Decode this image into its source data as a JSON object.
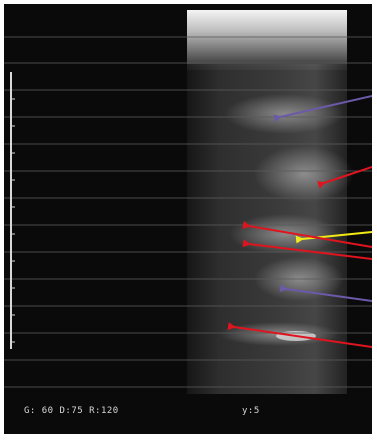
{
  "status_bar": {
    "settings": "G: 60 D:75 R:120",
    "index": "y:5"
  },
  "colors": {
    "background": "#0a0a0a",
    "arrow_purple": "#6b5aa8",
    "arrow_red": "#e0141e",
    "arrow_yellow": "#f2ea14"
  },
  "annotations": [
    {
      "name": "arrow-purple-upper",
      "color": "purple"
    },
    {
      "name": "arrow-red-1",
      "color": "red"
    },
    {
      "name": "arrow-yellow",
      "color": "yellow"
    },
    {
      "name": "arrow-red-2",
      "color": "red"
    },
    {
      "name": "arrow-red-3",
      "color": "red"
    },
    {
      "name": "arrow-purple-lower",
      "color": "purple"
    },
    {
      "name": "arrow-red-4",
      "color": "red"
    }
  ]
}
